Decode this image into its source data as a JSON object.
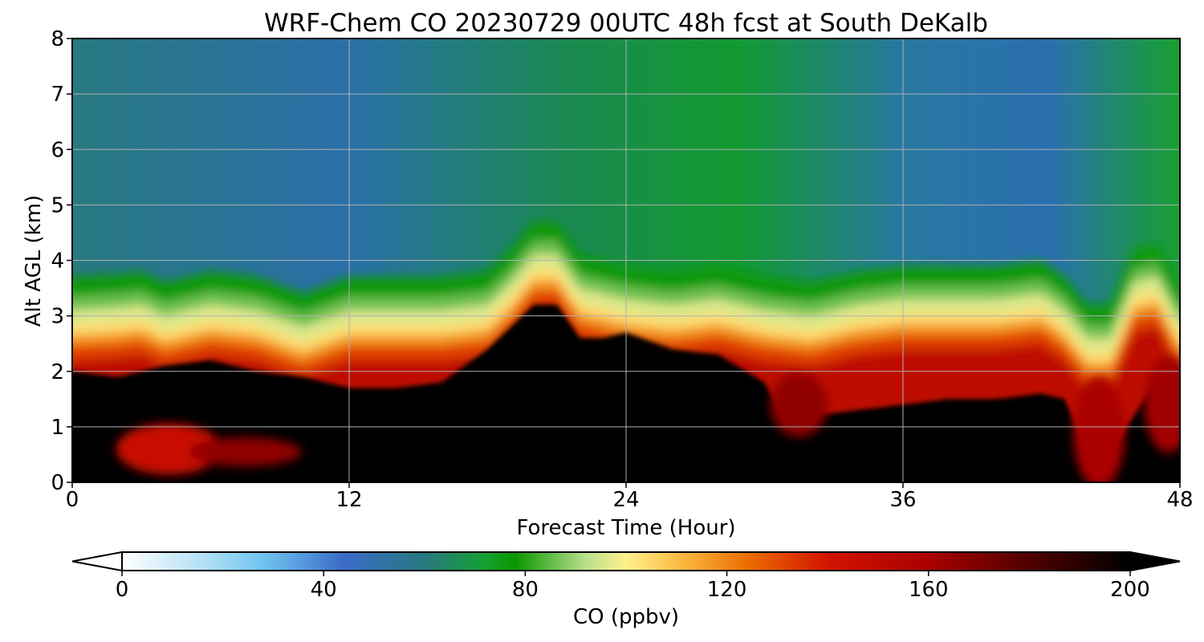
{
  "chart_data": {
    "type": "heatmap",
    "title": "WRF-Chem CO  20230729 00UTC 48h fcst at South DeKalb",
    "xlabel": "Forecast Time (Hour)",
    "ylabel": "Alt AGL (km)",
    "xlim": [
      0,
      48
    ],
    "ylim": [
      0,
      8
    ],
    "x_ticks": [
      "0",
      "12",
      "24",
      "36",
      "48"
    ],
    "y_ticks": [
      "0",
      "1",
      "2",
      "3",
      "4",
      "5",
      "6",
      "7",
      "8"
    ],
    "grid": true,
    "colorbar": {
      "label": "CO  (ppbv)",
      "range": [
        0,
        200
      ],
      "ticks": [
        "0",
        "40",
        "80",
        "120",
        "160",
        "200"
      ],
      "extend": "both",
      "stops": [
        {
          "value": 0,
          "color": "#ffffff"
        },
        {
          "value": 16,
          "color": "#b4e0f6"
        },
        {
          "value": 28,
          "color": "#6fc4f0"
        },
        {
          "value": 44,
          "color": "#3a6cc8"
        },
        {
          "value": 60,
          "color": "#287880"
        },
        {
          "value": 72,
          "color": "#14a030"
        },
        {
          "value": 78,
          "color": "#0a9600"
        },
        {
          "value": 92,
          "color": "#b8e08c"
        },
        {
          "value": 100,
          "color": "#fff08c"
        },
        {
          "value": 112,
          "color": "#fab43c"
        },
        {
          "value": 124,
          "color": "#eb6e00"
        },
        {
          "value": 140,
          "color": "#d21400"
        },
        {
          "value": 160,
          "color": "#aa0000"
        },
        {
          "value": 180,
          "color": "#500000"
        },
        {
          "value": 200,
          "color": "#000000"
        }
      ]
    },
    "boundary_layer_top_km": {
      "hours": [
        0,
        2,
        3,
        4,
        6,
        8,
        10,
        12,
        14,
        16,
        18,
        19,
        20,
        21,
        22,
        23,
        24,
        26,
        28,
        30,
        32,
        34,
        36,
        38,
        40,
        42,
        43,
        44,
        45,
        46,
        47,
        48
      ],
      "height": [
        2.8,
        2.85,
        2.9,
        2.7,
        2.9,
        2.8,
        2.5,
        2.8,
        2.8,
        2.8,
        2.9,
        3.3,
        3.8,
        3.8,
        3.2,
        3.1,
        3.0,
        2.9,
        3.0,
        2.8,
        2.7,
        2.9,
        3.0,
        3.0,
        3.0,
        3.1,
        2.8,
        2.3,
        2.3,
        3.3,
        3.4,
        2.6
      ]
    },
    "high_co_region_top_km": {
      "hours": [
        0,
        2,
        4,
        6,
        8,
        10,
        12,
        14,
        16,
        17,
        18,
        19,
        20,
        21,
        22,
        23,
        24,
        26,
        28,
        30,
        31,
        32,
        34,
        36,
        38,
        40,
        42,
        43,
        44,
        45,
        46,
        47,
        48
      ],
      "height": [
        2.0,
        1.9,
        2.1,
        2.2,
        2.0,
        1.9,
        1.7,
        1.7,
        1.8,
        2.1,
        2.4,
        2.8,
        3.2,
        3.2,
        2.6,
        2.6,
        2.7,
        2.4,
        2.3,
        1.8,
        1.0,
        1.2,
        1.3,
        1.4,
        1.5,
        1.5,
        1.6,
        1.5,
        0.5,
        0.5,
        1.2,
        1.8,
        1.0
      ]
    }
  }
}
